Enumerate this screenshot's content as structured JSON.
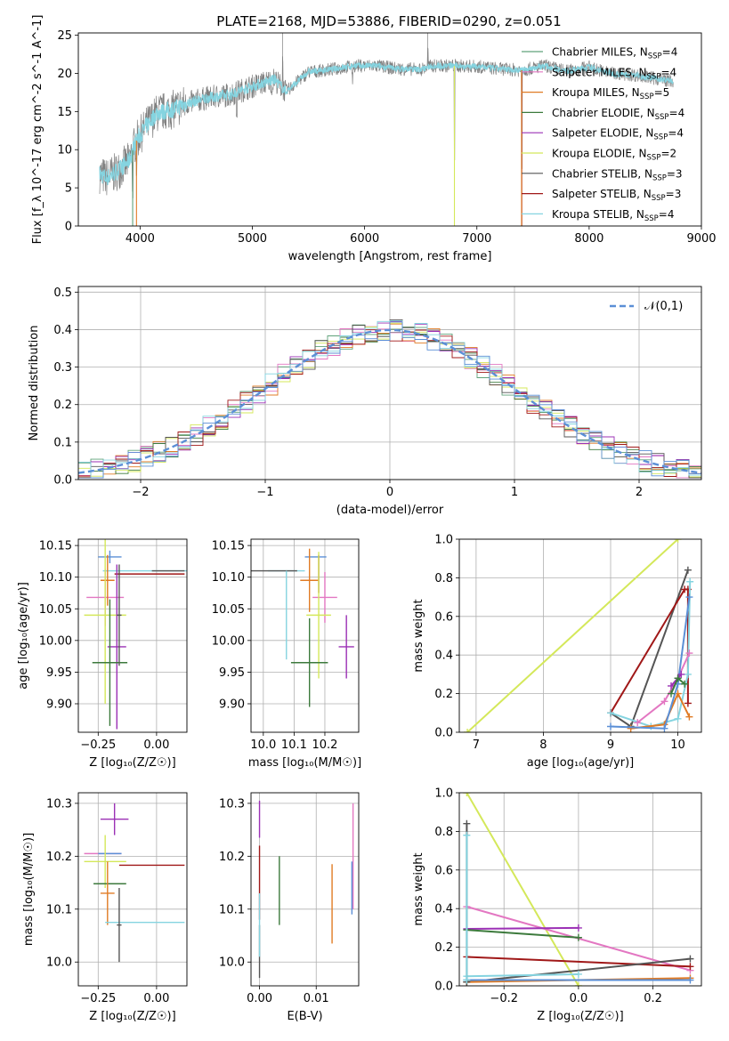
{
  "figure_title": "PLATE=2168, MJD=53886, FIBERID=0290, z=0.051",
  "colors": {
    "chabrier_miles": "#5fa27a",
    "salpeter_miles": "#e377c2",
    "kroupa_miles": "#e07b24",
    "chabrier_elodie": "#3c7a3c",
    "salpeter_elodie": "#9b30b5",
    "kroupa_elodie": "#d4e85a",
    "chabrier_stelib": "#555555",
    "salpeter_stelib": "#a01818",
    "kroupa_stelib": "#85d4e0",
    "normal_curve": "#5b8fd6"
  },
  "chart_data": [
    {
      "id": "spectrum",
      "type": "line",
      "title": "PLATE=2168, MJD=53886, FIBERID=0290, z=0.051",
      "xlabel": "wavelength [Angstrom, rest frame]",
      "ylabel": "Flux [f_λ 10^-17 erg cm^-2 s^-1 A^-1]",
      "xlim": [
        3450,
        9000
      ],
      "ylim": [
        0,
        25.3
      ],
      "xticks": [
        "4000",
        "5000",
        "6000",
        "7000",
        "8000",
        "9000"
      ],
      "yticks": [
        "0",
        "5",
        "10",
        "15",
        "20",
        "25"
      ],
      "grid": false,
      "legend_position": "right",
      "legend": [
        {
          "name": "Chabrier MILES, N_SSP=4",
          "base": "Chabrier MILES, N",
          "sub": "SSP",
          "val": "=4",
          "color_key": "chabrier_miles"
        },
        {
          "name": "Salpeter MILES, N_SSP=4",
          "base": "Salpeter MILES, N",
          "sub": "SSP",
          "val": "=4",
          "color_key": "salpeter_miles"
        },
        {
          "name": "Kroupa MILES, N_SSP=5",
          "base": "Kroupa MILES, N",
          "sub": "SSP",
          "val": "=5",
          "color_key": "kroupa_miles"
        },
        {
          "name": "Chabrier ELODIE, N_SSP=4",
          "base": "Chabrier ELODIE, N",
          "sub": "SSP",
          "val": "=4",
          "color_key": "chabrier_elodie"
        },
        {
          "name": "Salpeter ELODIE, N_SSP=4",
          "base": "Salpeter ELODIE, N",
          "sub": "SSP",
          "val": "=4",
          "color_key": "salpeter_elodie"
        },
        {
          "name": "Kroupa ELODIE, N_SSP=2",
          "base": "Kroupa ELODIE, N",
          "sub": "SSP",
          "val": "=2",
          "color_key": "kroupa_elodie"
        },
        {
          "name": "Chabrier STELIB, N_SSP=3",
          "base": "Chabrier STELIB, N",
          "sub": "SSP",
          "val": "=3",
          "color_key": "chabrier_stelib"
        },
        {
          "name": "Salpeter STELIB, N_SSP=3",
          "base": "Salpeter STELIB, N",
          "sub": "SSP",
          "val": "=3",
          "color_key": "salpeter_stelib"
        },
        {
          "name": "Kroupa STELIB, N_SSP=4",
          "base": "Kroupa STELIB, N",
          "sub": "SSP",
          "val": "=4",
          "color_key": "kroupa_stelib"
        }
      ],
      "data_curve_color": "#808080",
      "model_curve_color": "#85d4e0",
      "continuum_points": [
        [
          3640,
          6.8
        ],
        [
          3700,
          6.3
        ],
        [
          3800,
          7.2
        ],
        [
          3900,
          8.5
        ],
        [
          3960,
          11
        ],
        [
          4050,
          13
        ],
        [
          4150,
          14.8
        ],
        [
          4300,
          15.3
        ],
        [
          4400,
          16
        ],
        [
          4600,
          16.8
        ],
        [
          4800,
          17.2
        ],
        [
          5000,
          18.3
        ],
        [
          5200,
          19.2
        ],
        [
          5300,
          17.6
        ],
        [
          5500,
          20.2
        ],
        [
          5700,
          20.5
        ],
        [
          5900,
          21
        ],
        [
          6100,
          21
        ],
        [
          6300,
          20.6
        ],
        [
          6500,
          20.5
        ],
        [
          6600,
          21
        ],
        [
          6800,
          21
        ],
        [
          7000,
          20.9
        ],
        [
          7200,
          20.6
        ],
        [
          7400,
          20.4
        ],
        [
          7600,
          21
        ],
        [
          7800,
          20.3
        ],
        [
          8000,
          20.8
        ],
        [
          8200,
          20
        ],
        [
          8400,
          19.8
        ],
        [
          8600,
          19.3
        ],
        [
          8750,
          19
        ]
      ],
      "spikes": [
        [
          3934,
          -7
        ],
        [
          3968,
          -5
        ],
        [
          4861,
          -4
        ],
        [
          5175,
          -3
        ],
        [
          5270,
          6
        ],
        [
          5890,
          -3
        ],
        [
          6563,
          4
        ],
        [
          6800,
          -20
        ],
        [
          7400,
          -21
        ]
      ]
    },
    {
      "id": "residuals",
      "type": "bar",
      "xlabel": "(data-model)/error",
      "ylabel": "Normed distribution",
      "xlim": [
        -2.5,
        2.5
      ],
      "ylim": [
        0,
        0.515
      ],
      "xticks": [
        -2,
        -1,
        0,
        1,
        2
      ],
      "yticks": [
        0.0,
        0.1,
        0.2,
        0.3,
        0.4,
        0.5
      ],
      "xtick_labels": [
        "−2",
        "−1",
        "0",
        "1",
        "2"
      ],
      "ytick_labels": [
        "0.0",
        "0.1",
        "0.2",
        "0.3",
        "0.4",
        "0.5"
      ],
      "grid": true,
      "legend_position": "top-right",
      "curve_label": "𝒩(0,1)",
      "bin_edges_start": -2.5,
      "bin_width": 0.1
    },
    {
      "id": "age_vs_z",
      "type": "scatter",
      "xlabel": "Z [log₁₀(Z/Z☉)]",
      "ylabel": "age  [log₁₀(age/yr)]",
      "xlim": [
        -0.335,
        0.13
      ],
      "ylim": [
        9.855,
        10.16
      ],
      "xtick_labels": [
        "−0.25",
        "0.00"
      ],
      "xticks": [
        -0.25,
        0.0
      ],
      "yticks": [
        9.9,
        9.95,
        10.0,
        10.05,
        10.1,
        10.15
      ],
      "ytick_labels": [
        "9.90",
        "9.95",
        "10.00",
        "10.05",
        "10.10",
        "10.15"
      ],
      "grid": true,
      "points": [
        {
          "color_key": "kroupa_stelib",
          "x": -0.05,
          "xerr": 0.18,
          "y": 10.11,
          "yerr": 0.0
        },
        {
          "color_key": "chabrier_stelib",
          "x": 0.05,
          "xerr": 0.07,
          "y": 10.11,
          "yerr": 0.0
        },
        {
          "color_key": "salpeter_stelib",
          "x": -0.03,
          "xerr": 0.15,
          "y": 10.105,
          "yerr": 0.0
        },
        {
          "color_key": "normal_curve",
          "x": -0.2,
          "xerr": 0.05,
          "y": 10.132,
          "yerr": 0.01
        },
        {
          "color_key": "salpeter_miles",
          "x": -0.22,
          "xerr": 0.08,
          "y": 10.068,
          "yerr": 0.045
        },
        {
          "color_key": "kroupa_miles",
          "x": -0.21,
          "xerr": 0.03,
          "y": 10.095,
          "yerr": 0.04
        },
        {
          "color_key": "kroupa_elodie",
          "x": -0.22,
          "xerr": 0.09,
          "y": 10.04,
          "yerr": 0.14
        },
        {
          "color_key": "salpeter_elodie",
          "x": -0.17,
          "xerr": 0.04,
          "y": 9.99,
          "yerr": 0.13
        },
        {
          "color_key": "chabrier_elodie",
          "x": -0.2,
          "xerr": 0.075,
          "y": 9.965,
          "yerr": 0.1
        },
        {
          "color_key": "chabrier_stelib",
          "x": -0.16,
          "xerr": 0.01,
          "y": 10.04,
          "yerr": 0.08
        }
      ]
    },
    {
      "id": "age_vs_mass",
      "type": "scatter",
      "xlabel": "mass [log₁₀(M/M☉)]",
      "ylabel": "",
      "xlim": [
        9.96,
        10.31
      ],
      "ylim": [
        9.855,
        10.16
      ],
      "xticks": [
        10.0,
        10.1,
        10.2
      ],
      "xtick_labels": [
        "10.0",
        "10.1",
        "10.2"
      ],
      "yticks": [
        9.9,
        9.95,
        10.0,
        10.05,
        10.1,
        10.15
      ],
      "ytick_labels": [
        "9.90",
        "9.95",
        "10.00",
        "10.05",
        "10.10",
        "10.15"
      ],
      "grid": true,
      "points": [
        {
          "color_key": "kroupa_stelib",
          "x": 10.075,
          "xerr": 0.06,
          "y": 10.11,
          "yerr": 0.0
        },
        {
          "color_key": "chabrier_stelib",
          "x": 10.03,
          "xerr": 0.08,
          "y": 10.11,
          "yerr": 0.0
        },
        {
          "color_key": "normal_curve",
          "x": 10.17,
          "xerr": 0.035,
          "y": 10.132,
          "yerr": 0.0
        },
        {
          "color_key": "salpeter_stelib",
          "x": 10.18,
          "xerr": 0.0,
          "y": 10.105,
          "yerr": 0.03
        },
        {
          "color_key": "salpeter_miles",
          "x": 10.2,
          "xerr": 0.04,
          "y": 10.068,
          "yerr": 0.04
        },
        {
          "color_key": "kroupa_miles",
          "x": 10.15,
          "xerr": 0.03,
          "y": 10.095,
          "yerr": 0.05
        },
        {
          "color_key": "kroupa_elodie",
          "x": 10.18,
          "xerr": 0.04,
          "y": 10.04,
          "yerr": 0.1
        },
        {
          "color_key": "salpeter_elodie",
          "x": 10.27,
          "xerr": 0.025,
          "y": 9.99,
          "yerr": 0.05
        },
        {
          "color_key": "chabrier_elodie",
          "x": 10.15,
          "xerr": 0.06,
          "y": 9.965,
          "yerr": 0.07
        },
        {
          "color_key": "kroupa_stelib",
          "x": 10.075,
          "xerr": 0.0,
          "y": 10.04,
          "yerr": 0.07
        }
      ]
    },
    {
      "id": "massweight_vs_age",
      "type": "line",
      "xlabel": "age  [log₁₀(age/yr)]",
      "ylabel": "mass weight",
      "xlim": [
        6.75,
        10.35
      ],
      "ylim": [
        0,
        1.0
      ],
      "xticks": [
        7,
        8,
        9,
        10
      ],
      "xtick_labels": [
        "7",
        "8",
        "9",
        "10"
      ],
      "yticks": [
        0,
        0.2,
        0.4,
        0.6,
        0.8,
        1.0
      ],
      "ytick_labels": [
        "0.0",
        "0.2",
        "0.4",
        "0.6",
        "0.8",
        "1.0"
      ],
      "grid": true,
      "series": [
        {
          "color_key": "kroupa_elodie",
          "x": [
            6.87,
            10.0
          ],
          "y": [
            0.0,
            1.0
          ]
        },
        {
          "color_key": "chabrier_stelib",
          "x": [
            9.0,
            9.3,
            10.15
          ],
          "y": [
            0.1,
            0.03,
            0.84
          ]
        },
        {
          "color_key": "salpeter_stelib",
          "x": [
            9.0,
            10.1,
            10.15,
            10.15
          ],
          "y": [
            0.1,
            0.74,
            0.74,
            0.15
          ]
        },
        {
          "color_key": "kroupa_stelib",
          "x": [
            9.0,
            9.6,
            10.0,
            10.15,
            10.18
          ],
          "y": [
            0.1,
            0.03,
            0.07,
            0.3,
            0.78
          ]
        },
        {
          "color_key": "salpeter_miles",
          "x": [
            9.4,
            9.8,
            10.0,
            10.17
          ],
          "y": [
            0.05,
            0.16,
            0.28,
            0.41
          ]
        },
        {
          "color_key": "kroupa_miles",
          "x": [
            9.3,
            9.8,
            10.0,
            10.17
          ],
          "y": [
            0.02,
            0.04,
            0.2,
            0.08
          ]
        },
        {
          "color_key": "normal_curve",
          "x": [
            9.0,
            9.8,
            10.0,
            10.17
          ],
          "y": [
            0.03,
            0.02,
            0.25,
            0.7
          ]
        },
        {
          "color_key": "salpeter_elodie",
          "x": [
            9.9,
            10.05
          ],
          "y": [
            0.24,
            0.3
          ]
        },
        {
          "color_key": "chabrier_elodie",
          "x": [
            9.9,
            10.0,
            10.1
          ],
          "y": [
            0.2,
            0.28,
            0.25
          ]
        }
      ]
    },
    {
      "id": "mass_vs_z",
      "type": "scatter",
      "xlabel": "Z [log₁₀(Z/Z☉)]",
      "ylabel": "mass [log₁₀(M/M☉)]",
      "xlim": [
        -0.335,
        0.13
      ],
      "ylim": [
        9.955,
        10.32
      ],
      "xticks": [
        -0.25,
        0.0
      ],
      "xtick_labels": [
        "−0.25",
        "0.00"
      ],
      "yticks": [
        10.0,
        10.1,
        10.2,
        10.3
      ],
      "ytick_labels": [
        "10.0",
        "10.1",
        "10.2",
        "10.3"
      ],
      "grid": true,
      "points": [
        {
          "color_key": "salpeter_elodie",
          "x": -0.18,
          "xerr": 0.06,
          "y": 10.27,
          "yerr": 0.03
        },
        {
          "color_key": "salpeter_miles",
          "x": -0.23,
          "xerr": 0.08,
          "y": 10.205,
          "yerr": 0.0
        },
        {
          "color_key": "normal_curve",
          "x": -0.2,
          "xerr": 0.05,
          "y": 10.205,
          "yerr": 0.0
        },
        {
          "color_key": "kroupa_elodie",
          "x": -0.22,
          "xerr": 0.09,
          "y": 10.19,
          "yerr": 0.05
        },
        {
          "color_key": "salpeter_stelib",
          "x": -0.02,
          "xerr": 0.14,
          "y": 10.183,
          "yerr": 0.0
        },
        {
          "color_key": "chabrier_elodie",
          "x": -0.2,
          "xerr": 0.07,
          "y": 10.148,
          "yerr": 0.0
        },
        {
          "color_key": "kroupa_miles",
          "x": -0.21,
          "xerr": 0.03,
          "y": 10.13,
          "yerr": 0.06
        },
        {
          "color_key": "kroupa_stelib",
          "x": -0.05,
          "xerr": 0.17,
          "y": 10.075,
          "yerr": 0.0
        },
        {
          "color_key": "chabrier_stelib",
          "x": -0.16,
          "xerr": 0.01,
          "y": 10.07,
          "yerr": 0.07
        }
      ]
    },
    {
      "id": "mass_vs_ebv",
      "type": "scatter",
      "xlabel": "E(B-V)",
      "ylabel": "",
      "xlim": [
        -0.0015,
        0.0175
      ],
      "ylim": [
        9.955,
        10.32
      ],
      "xticks": [
        0.0,
        0.01
      ],
      "xtick_labels": [
        "0.00",
        "0.01"
      ],
      "yticks": [
        10.0,
        10.1,
        10.2,
        10.3
      ],
      "ytick_labels": [
        "10.0",
        "10.1",
        "10.2",
        "10.3"
      ],
      "grid": true,
      "points": [
        {
          "color_key": "salpeter_elodie",
          "x": 0.0,
          "xerr": 0.0,
          "y": 10.27,
          "yerr": 0.035
        },
        {
          "color_key": "salpeter_stelib",
          "x": 0.0,
          "xerr": 0.0,
          "y": 10.15,
          "yerr": 0.07
        },
        {
          "color_key": "chabrier_stelib",
          "x": 0.0,
          "xerr": 0.0,
          "y": 10.02,
          "yerr": 0.05
        },
        {
          "color_key": "kroupa_stelib",
          "x": 0.0,
          "xerr": 0.0,
          "y": 10.07,
          "yerr": 0.06
        },
        {
          "color_key": "chabrier_elodie",
          "x": 0.0035,
          "xerr": 0.0,
          "y": 10.135,
          "yerr": 0.065
        },
        {
          "color_key": "kroupa_miles",
          "x": 0.0128,
          "xerr": 0.0,
          "y": 10.11,
          "yerr": 0.075
        },
        {
          "color_key": "salpeter_miles",
          "x": 0.0165,
          "xerr": 0.0,
          "y": 10.2,
          "yerr": 0.1
        },
        {
          "color_key": "normal_curve",
          "x": 0.0163,
          "xerr": 0.0,
          "y": 10.14,
          "yerr": 0.05
        }
      ]
    },
    {
      "id": "massweight_vs_z",
      "type": "line",
      "xlabel": "Z [log₁₀(Z/Z☉)]",
      "ylabel": "mass weight",
      "xlim": [
        -0.32,
        0.33
      ],
      "ylim": [
        0,
        1.0
      ],
      "xticks": [
        -0.2,
        0.0,
        0.2
      ],
      "xtick_labels": [
        "−0.2",
        "0.0",
        "0.2"
      ],
      "yticks": [
        0,
        0.2,
        0.4,
        0.6,
        0.8,
        1.0
      ],
      "ytick_labels": [
        "0.0",
        "0.2",
        "0.4",
        "0.6",
        "0.8",
        "1.0"
      ],
      "grid": true,
      "series": [
        {
          "color_key": "kroupa_elodie",
          "x": [
            -0.3,
            0.0
          ],
          "y": [
            1.0,
            0.0
          ]
        },
        {
          "color_key": "salpeter_miles",
          "x": [
            -0.3,
            0.3
          ],
          "y": [
            0.41,
            0.08
          ]
        },
        {
          "color_key": "salpeter_elodie",
          "x": [
            -0.3,
            0.0
          ],
          "y": [
            0.295,
            0.3
          ]
        },
        {
          "color_key": "chabrier_elodie",
          "x": [
            -0.3,
            0.0
          ],
          "y": [
            0.29,
            0.25
          ]
        },
        {
          "color_key": "salpeter_stelib",
          "x": [
            -0.3,
            0.3
          ],
          "y": [
            0.15,
            0.1
          ]
        },
        {
          "color_key": "chabrier_stelib",
          "x": [
            -0.3,
            0.3
          ],
          "y": [
            0.02,
            0.14
          ]
        },
        {
          "color_key": "kroupa_miles",
          "x": [
            -0.3,
            0.3
          ],
          "y": [
            0.02,
            0.04
          ]
        },
        {
          "color_key": "kroupa_stelib",
          "x": [
            -0.3,
            0.0
          ],
          "y": [
            0.05,
            0.06
          ]
        },
        {
          "color_key": "normal_curve",
          "x": [
            -0.3,
            0.3
          ],
          "y": [
            0.03,
            0.03
          ]
        },
        {
          "color_key": "chabrier_stelib",
          "x": [
            -0.3,
            -0.3
          ],
          "y": [
            0.02,
            0.84
          ]
        },
        {
          "color_key": "kroupa_stelib",
          "x": [
            -0.3,
            -0.3
          ],
          "y": [
            0.03,
            0.78
          ]
        }
      ]
    }
  ]
}
